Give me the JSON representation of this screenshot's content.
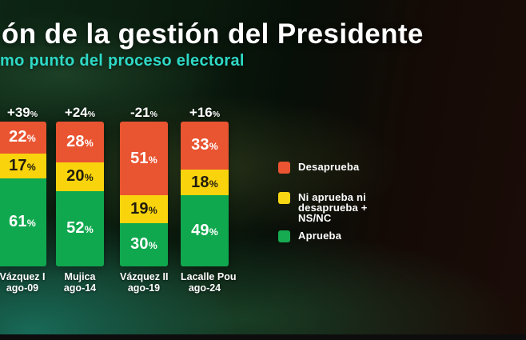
{
  "header": {
    "title": "ón de la gestión del Presidente",
    "subtitle": "mo punto del proceso electoral"
  },
  "chart_data": {
    "type": "bar",
    "stacked": true,
    "unit": "%",
    "title": "ón de la gestión del Presidente",
    "subtitle": "mo punto del proceso electoral",
    "categories": [
      "Vázquez I",
      "Mujica",
      "Vázquez II",
      "Lacalle Pou"
    ],
    "category_dates": [
      "ago-09",
      "ago-14",
      "ago-19",
      "ago-24"
    ],
    "net_balance_labels": [
      "+39%",
      "+24%",
      "-21%",
      "+16%"
    ],
    "series": [
      {
        "name": "Desaprueba",
        "color": "#e95431",
        "text_color": "#ffffff",
        "values": [
          22,
          28,
          51,
          33
        ]
      },
      {
        "name": "Ni aprueba ni desaprueba + NS/NC",
        "color": "#f9d40d",
        "text_color": "#221c0e",
        "values": [
          17,
          20,
          19,
          18
        ]
      },
      {
        "name": "Aprueba",
        "color": "#10a84e",
        "text_color": "#ffffff",
        "values": [
          61,
          52,
          30,
          49
        ]
      }
    ],
    "ylim": [
      0,
      100
    ],
    "grid": false,
    "legend_position": "right"
  },
  "legend": {
    "items": [
      {
        "label_lines": [
          "Desaprueba"
        ],
        "color": "#ea5431"
      },
      {
        "label_lines": [
          "Ni aprueba ni",
          "desaprueba +",
          "NS/NC"
        ],
        "color": "#f9d613"
      },
      {
        "label_lines": [
          "Aprueba"
        ],
        "color": "#17ab51"
      }
    ]
  },
  "colors": {
    "title": "#ffffff",
    "subtitle": "#2ed9c6",
    "bottom_bar": "#0d0d0d"
  }
}
